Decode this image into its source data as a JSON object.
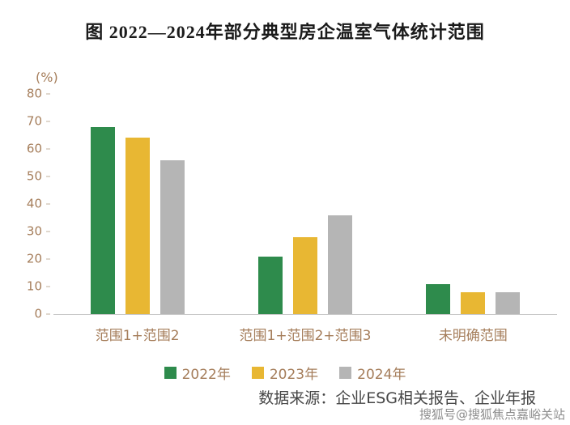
{
  "chart_data": {
    "type": "bar",
    "title": "图  2022—2024年部分典型房企温室气体统计范围",
    "ylabel": "(%)",
    "xlabel": "",
    "ylim": [
      0,
      80
    ],
    "ytick_step": 10,
    "grid": false,
    "legend_position": "bottom",
    "categories": [
      "范围1+范围2",
      "范围1+范围2+范围3",
      "未明确范围"
    ],
    "series": [
      {
        "name": "2022年",
        "color": "#2e8b4c",
        "values": [
          68,
          21,
          11
        ]
      },
      {
        "name": "2023年",
        "color": "#e8b733",
        "values": [
          64,
          28,
          8
        ]
      },
      {
        "name": "2024年",
        "color": "#b5b5b5",
        "values": [
          56,
          36,
          8
        ]
      }
    ]
  },
  "footer": {
    "source": "数据来源：企业ESG相关报告、企业年报",
    "watermark": "搜狐号@搜狐焦点嘉峪关站"
  },
  "colors": {
    "axis_text": "#a57d5a",
    "title_text": "#1a1a1a",
    "baseline": "#c9c9c9"
  }
}
